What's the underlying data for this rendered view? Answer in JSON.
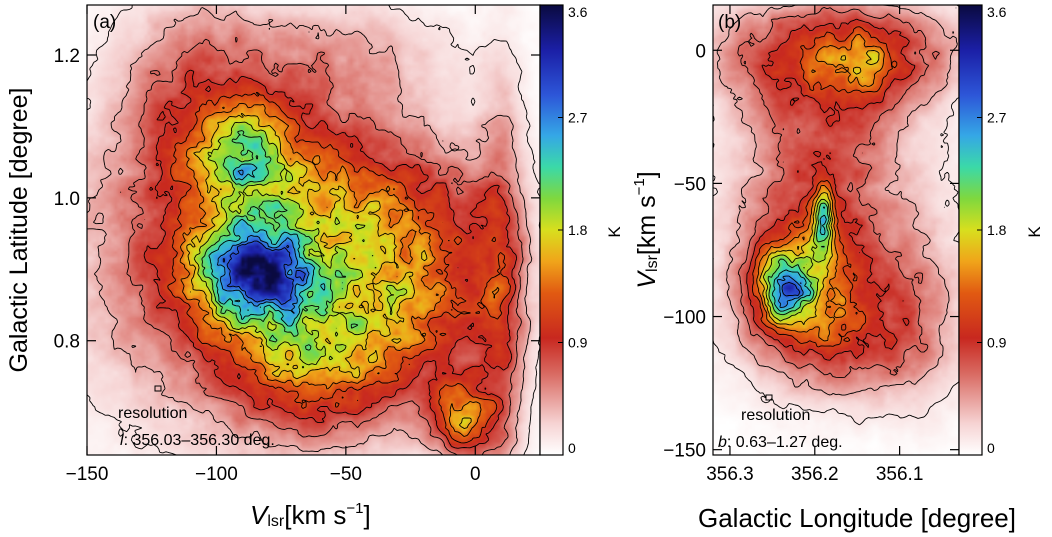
{
  "chart_data": [
    {
      "panel": "(a)",
      "type": "heatmap",
      "xlabel_main": "V",
      "xlabel_sub": "lsr",
      "xlabel_unit": "[km s",
      "xlabel_exp": "−1",
      "xlabel_close": "]",
      "ylabel": "Galactic Latitude [degree]",
      "xlim": [
        -150,
        25
      ],
      "ylim": [
        0.64,
        1.27
      ],
      "xticks": [
        -150,
        -100,
        -50,
        0
      ],
      "xtick_labels": [
        "−150",
        "−100",
        "−50",
        "0"
      ],
      "yticks": [
        0.8,
        1.0,
        1.2
      ],
      "ytick_labels": [
        "0.8",
        "1.0",
        "1.2"
      ],
      "annotation_resolution": "resolution",
      "annotation_range_var": "l",
      "annotation_range_text": ": 356.03–356.30 deg.",
      "colorbar": {
        "unit": "K",
        "ticks": [
          0,
          0.9,
          1.8,
          2.7,
          3.6
        ],
        "tick_labels": [
          "0",
          "0.9",
          "1.8",
          "2.7",
          "3.6"
        ]
      },
      "blobs": [
        {
          "x": -80,
          "y": 0.93,
          "sx": 42,
          "sy": 0.15,
          "amp": 1.4
        },
        {
          "x": -86,
          "y": 0.895,
          "sx": 15,
          "sy": 0.045,
          "amp": 2.0
        },
        {
          "x": -88,
          "y": 1.06,
          "sx": 14,
          "sy": 0.05,
          "amp": 1.1
        },
        {
          "x": -62,
          "y": 0.78,
          "sx": 22,
          "sy": 0.07,
          "amp": 1.0
        },
        {
          "x": -20,
          "y": 0.86,
          "sx": 22,
          "sy": 0.09,
          "amp": 0.95
        },
        {
          "x": -35,
          "y": 1.0,
          "sx": 30,
          "sy": 0.06,
          "amp": 0.45
        },
        {
          "x": -5,
          "y": 0.69,
          "sx": 8,
          "sy": 0.04,
          "amp": 1.3
        },
        {
          "x": 10,
          "y": 0.85,
          "sx": 6,
          "sy": 0.2,
          "amp": 0.7
        },
        {
          "x": -110,
          "y": 1.15,
          "sx": 18,
          "sy": 0.1,
          "amp": 0.45
        },
        {
          "x": -55,
          "y": 1.2,
          "sx": 30,
          "sy": 0.05,
          "amp": 0.3
        }
      ]
    },
    {
      "panel": "(b)",
      "type": "heatmap",
      "xlabel": "Galactic Longitude [degree]",
      "ylabel_main": "V",
      "ylabel_sub": "lsr",
      "ylabel_unit": "[km s",
      "ylabel_exp": "−1",
      "ylabel_close": "]",
      "xlim": [
        356.32,
        356.03
      ],
      "ylim": [
        -152,
        17
      ],
      "xticks": [
        356.3,
        356.2,
        356.1
      ],
      "xtick_labels": [
        "356.3",
        "356.2",
        "356.1"
      ],
      "yticks": [
        -150,
        -100,
        -50,
        0
      ],
      "ytick_labels": [
        "−150",
        "−100",
        "−50",
        "0"
      ],
      "annotation_resolution": "resolution",
      "annotation_range_var": "b",
      "annotation_range_text": ": 0.63–1.27 deg.",
      "colorbar": {
        "unit": "K",
        "ticks": [
          0,
          0.9,
          1.8,
          2.7,
          3.6
        ],
        "tick_labels": [
          "0",
          "0.9",
          "1.8",
          "2.7",
          "3.6"
        ]
      },
      "blobs": [
        {
          "x": 356.21,
          "y": -85,
          "sx": 0.055,
          "sy": 20,
          "amp": 1.4
        },
        {
          "x": 356.235,
          "y": -90,
          "sx": 0.022,
          "sy": 9,
          "amp": 1.5
        },
        {
          "x": 356.19,
          "y": -63,
          "sx": 0.008,
          "sy": 8,
          "amp": 1.7
        },
        {
          "x": 356.17,
          "y": 0,
          "sx": 0.1,
          "sy": 14,
          "amp": 0.95
        },
        {
          "x": 356.14,
          "y": -5,
          "sx": 0.03,
          "sy": 7,
          "amp": 0.6
        },
        {
          "x": 356.19,
          "y": -35,
          "sx": 0.07,
          "sy": 25,
          "amp": 0.7
        },
        {
          "x": 356.15,
          "y": -110,
          "sx": 0.07,
          "sy": 15,
          "amp": 0.6
        },
        {
          "x": 356.08,
          "y": -90,
          "sx": 0.04,
          "sy": 25,
          "amp": 0.4
        }
      ]
    }
  ]
}
